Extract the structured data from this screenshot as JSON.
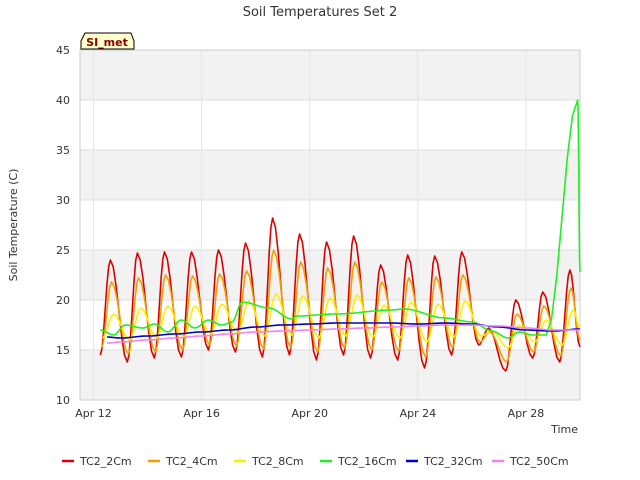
{
  "chart_data": {
    "type": "line",
    "title": "Soil Temperatures Set 2",
    "xlabel": "Time",
    "ylabel": "Soil Temperature (C)",
    "badge": "SI_met",
    "ylim": [
      10,
      45
    ],
    "yticks": [
      "10",
      "15",
      "20",
      "25",
      "30",
      "35",
      "40",
      "45"
    ],
    "xlim": [
      "2023-04-12",
      "2023-04-30"
    ],
    "xticks": [
      {
        "label": "Apr 12",
        "value": "2023-04-12"
      },
      {
        "label": "Apr 16",
        "value": "2023-04-16"
      },
      {
        "label": "Apr 20",
        "value": "2023-04-20"
      },
      {
        "label": "Apr 24",
        "value": "2023-04-24"
      },
      {
        "label": "Apr 28",
        "value": "2023-04-28"
      }
    ],
    "grid": true,
    "legend_placement": "bottom",
    "series": [
      {
        "name": "TC2_2Cm",
        "color": "#dd0000",
        "points": [
          [
            "2023-04-12T06:00",
            14.5
          ],
          [
            "2023-04-12T15:00",
            24.0
          ],
          [
            "2023-04-13T06:00",
            13.8
          ],
          [
            "2023-04-13T15:00",
            24.7
          ],
          [
            "2023-04-14T06:00",
            14.2
          ],
          [
            "2023-04-14T15:00",
            24.8
          ],
          [
            "2023-04-15T06:00",
            14.3
          ],
          [
            "2023-04-15T15:00",
            24.8
          ],
          [
            "2023-04-16T06:00",
            15.0
          ],
          [
            "2023-04-16T15:00",
            25.0
          ],
          [
            "2023-04-17T06:00",
            14.8
          ],
          [
            "2023-04-17T15:00",
            25.7
          ],
          [
            "2023-04-18T06:00",
            14.3
          ],
          [
            "2023-04-18T15:00",
            28.2
          ],
          [
            "2023-04-19T06:00",
            14.5
          ],
          [
            "2023-04-19T15:00",
            26.6
          ],
          [
            "2023-04-20T06:00",
            14.0
          ],
          [
            "2023-04-20T15:00",
            25.8
          ],
          [
            "2023-04-21T06:00",
            14.5
          ],
          [
            "2023-04-21T15:00",
            26.4
          ],
          [
            "2023-04-22T06:00",
            14.2
          ],
          [
            "2023-04-22T15:00",
            23.5
          ],
          [
            "2023-04-23T06:00",
            14.0
          ],
          [
            "2023-04-23T15:00",
            24.5
          ],
          [
            "2023-04-24T06:00",
            13.2
          ],
          [
            "2023-04-24T15:00",
            24.4
          ],
          [
            "2023-04-25T06:00",
            14.5
          ],
          [
            "2023-04-25T15:00",
            24.8
          ],
          [
            "2023-04-26T06:00",
            15.5
          ],
          [
            "2023-04-26T15:00",
            17.2
          ],
          [
            "2023-04-27T06:00",
            12.9
          ],
          [
            "2023-04-27T15:00",
            20.0
          ],
          [
            "2023-04-28T06:00",
            14.2
          ],
          [
            "2023-04-28T15:00",
            20.8
          ],
          [
            "2023-04-29T06:00",
            13.8
          ],
          [
            "2023-04-29T15:00",
            23.0
          ],
          [
            "2023-04-30T00:00",
            15.3
          ]
        ]
      },
      {
        "name": "TC2_4Cm",
        "color": "#f0a000",
        "points": [
          [
            "2023-04-12T07:00",
            15.2
          ],
          [
            "2023-04-12T16:00",
            21.8
          ],
          [
            "2023-04-13T07:00",
            14.6
          ],
          [
            "2023-04-13T16:00",
            22.2
          ],
          [
            "2023-04-14T07:00",
            14.8
          ],
          [
            "2023-04-14T16:00",
            22.5
          ],
          [
            "2023-04-15T07:00",
            15.0
          ],
          [
            "2023-04-15T16:00",
            22.4
          ],
          [
            "2023-04-16T07:00",
            15.5
          ],
          [
            "2023-04-16T16:00",
            22.6
          ],
          [
            "2023-04-17T07:00",
            15.4
          ],
          [
            "2023-04-17T16:00",
            22.9
          ],
          [
            "2023-04-18T07:00",
            15.1
          ],
          [
            "2023-04-18T16:00",
            25.0
          ],
          [
            "2023-04-19T07:00",
            15.2
          ],
          [
            "2023-04-19T16:00",
            23.8
          ],
          [
            "2023-04-20T07:00",
            14.8
          ],
          [
            "2023-04-20T16:00",
            23.2
          ],
          [
            "2023-04-21T07:00",
            15.2
          ],
          [
            "2023-04-21T16:00",
            23.8
          ],
          [
            "2023-04-22T07:00",
            15.0
          ],
          [
            "2023-04-22T16:00",
            21.8
          ],
          [
            "2023-04-23T07:00",
            14.9
          ],
          [
            "2023-04-23T16:00",
            22.2
          ],
          [
            "2023-04-24T07:00",
            14.3
          ],
          [
            "2023-04-24T16:00",
            22.3
          ],
          [
            "2023-04-25T07:00",
            15.2
          ],
          [
            "2023-04-25T16:00",
            22.5
          ],
          [
            "2023-04-26T07:00",
            15.8
          ],
          [
            "2023-04-26T16:00",
            16.8
          ],
          [
            "2023-04-27T07:00",
            13.8
          ],
          [
            "2023-04-27T16:00",
            18.6
          ],
          [
            "2023-04-28T07:00",
            14.8
          ],
          [
            "2023-04-28T16:00",
            19.4
          ],
          [
            "2023-04-29T07:00",
            14.4
          ],
          [
            "2023-04-29T16:00",
            21.2
          ],
          [
            "2023-04-30T00:00",
            16.0
          ]
        ]
      },
      {
        "name": "TC2_8Cm",
        "color": "#ffee00",
        "points": [
          [
            "2023-04-12T08:00",
            16.2
          ],
          [
            "2023-04-12T18:00",
            18.6
          ],
          [
            "2023-04-13T08:00",
            16.0
          ],
          [
            "2023-04-13T18:00",
            19.2
          ],
          [
            "2023-04-14T08:00",
            16.2
          ],
          [
            "2023-04-14T18:00",
            19.4
          ],
          [
            "2023-04-15T08:00",
            16.3
          ],
          [
            "2023-04-15T18:00",
            19.4
          ],
          [
            "2023-04-16T08:00",
            16.6
          ],
          [
            "2023-04-16T18:00",
            19.6
          ],
          [
            "2023-04-17T08:00",
            16.7
          ],
          [
            "2023-04-17T18:00",
            19.9
          ],
          [
            "2023-04-18T08:00",
            16.4
          ],
          [
            "2023-04-18T18:00",
            20.6
          ],
          [
            "2023-04-19T08:00",
            16.5
          ],
          [
            "2023-04-19T18:00",
            20.4
          ],
          [
            "2023-04-20T08:00",
            16.2
          ],
          [
            "2023-04-20T18:00",
            20.2
          ],
          [
            "2023-04-21T08:00",
            16.4
          ],
          [
            "2023-04-21T18:00",
            20.5
          ],
          [
            "2023-04-22T08:00",
            16.3
          ],
          [
            "2023-04-22T18:00",
            19.5
          ],
          [
            "2023-04-23T08:00",
            16.2
          ],
          [
            "2023-04-23T18:00",
            19.8
          ],
          [
            "2023-04-24T08:00",
            15.8
          ],
          [
            "2023-04-24T18:00",
            19.6
          ],
          [
            "2023-04-25T08:00",
            16.3
          ],
          [
            "2023-04-25T18:00",
            19.9
          ],
          [
            "2023-04-26T08:00",
            16.4
          ],
          [
            "2023-04-26T18:00",
            16.9
          ],
          [
            "2023-04-27T08:00",
            15.2
          ],
          [
            "2023-04-27T18:00",
            17.5
          ],
          [
            "2023-04-28T08:00",
            15.8
          ],
          [
            "2023-04-28T18:00",
            18.0
          ],
          [
            "2023-04-29T08:00",
            15.5
          ],
          [
            "2023-04-29T18:00",
            19.0
          ],
          [
            "2023-04-30T00:00",
            17.2
          ]
        ]
      },
      {
        "name": "TC2_16Cm",
        "color": "#22ee22",
        "points": [
          [
            "2023-04-12T06:00",
            17.0
          ],
          [
            "2023-04-12T18:00",
            16.5
          ],
          [
            "2023-04-13T04:00",
            17.5
          ],
          [
            "2023-04-13T20:00",
            17.2
          ],
          [
            "2023-04-14T06:00",
            17.6
          ],
          [
            "2023-04-14T18:00",
            16.8
          ],
          [
            "2023-04-15T06:00",
            18.0
          ],
          [
            "2023-04-15T18:00",
            17.2
          ],
          [
            "2023-04-16T06:00",
            18.0
          ],
          [
            "2023-04-16T18:00",
            17.5
          ],
          [
            "2023-04-17T03:00",
            17.8
          ],
          [
            "2023-04-17T12:00",
            19.8
          ],
          [
            "2023-04-18T12:00",
            19.2
          ],
          [
            "2023-04-19T08:00",
            18.1
          ],
          [
            "2023-04-19T12:00",
            18.4
          ],
          [
            "2023-04-21T00:00",
            18.6
          ],
          [
            "2023-04-23T00:00",
            19.0
          ],
          [
            "2023-04-23T12:00",
            19.1
          ],
          [
            "2023-04-25T00:00",
            18.2
          ],
          [
            "2023-04-26T00:00",
            17.8
          ],
          [
            "2023-04-26T18:00",
            16.9
          ],
          [
            "2023-04-27T08:00",
            16.2
          ],
          [
            "2023-04-27T18:00",
            16.8
          ],
          [
            "2023-04-28T06:00",
            16.5
          ],
          [
            "2023-04-28T18:00",
            16.5
          ],
          [
            "2023-04-29T22:00",
            40.0
          ],
          [
            "2023-04-30T00:00",
            22.8
          ]
        ]
      },
      {
        "name": "TC2_32Cm",
        "color": "#0000cc",
        "points": [
          [
            "2023-04-12T12:00",
            16.3
          ],
          [
            "2023-04-13T00:00",
            16.2
          ],
          [
            "2023-04-14T00:00",
            16.4
          ],
          [
            "2023-04-15T00:00",
            16.6
          ],
          [
            "2023-04-16T00:00",
            16.8
          ],
          [
            "2023-04-17T00:00",
            17.0
          ],
          [
            "2023-04-18T00:00",
            17.3
          ],
          [
            "2023-04-19T00:00",
            17.5
          ],
          [
            "2023-04-20T00:00",
            17.6
          ],
          [
            "2023-04-21T00:00",
            17.7
          ],
          [
            "2023-04-22T00:00",
            17.7
          ],
          [
            "2023-04-23T00:00",
            17.7
          ],
          [
            "2023-04-24T00:00",
            17.6
          ],
          [
            "2023-04-25T00:00",
            17.7
          ],
          [
            "2023-04-26T00:00",
            17.6
          ],
          [
            "2023-04-27T00:00",
            17.3
          ],
          [
            "2023-04-28T00:00",
            17.0
          ],
          [
            "2023-04-29T00:00",
            16.9
          ],
          [
            "2023-04-30T00:00",
            17.1
          ]
        ]
      },
      {
        "name": "TC2_50Cm",
        "color": "#ee82ee",
        "points": [
          [
            "2023-04-12T12:00",
            15.7
          ],
          [
            "2023-04-13T00:00",
            15.8
          ],
          [
            "2023-04-14T00:00",
            16.0
          ],
          [
            "2023-04-15T00:00",
            16.2
          ],
          [
            "2023-04-16T00:00",
            16.4
          ],
          [
            "2023-04-17T00:00",
            16.6
          ],
          [
            "2023-04-18T00:00",
            16.8
          ],
          [
            "2023-04-19T00:00",
            16.9
          ],
          [
            "2023-04-20T00:00",
            17.0
          ],
          [
            "2023-04-21T00:00",
            17.1
          ],
          [
            "2023-04-22T00:00",
            17.2
          ],
          [
            "2023-04-23T00:00",
            17.3
          ],
          [
            "2023-04-24T00:00",
            17.4
          ],
          [
            "2023-04-25T00:00",
            17.5
          ],
          [
            "2023-04-26T00:00",
            17.5
          ],
          [
            "2023-04-27T00:00",
            17.4
          ],
          [
            "2023-04-28T00:00",
            17.2
          ],
          [
            "2023-04-29T00:00",
            17.0
          ],
          [
            "2023-04-30T00:00",
            17.0
          ]
        ]
      }
    ]
  }
}
